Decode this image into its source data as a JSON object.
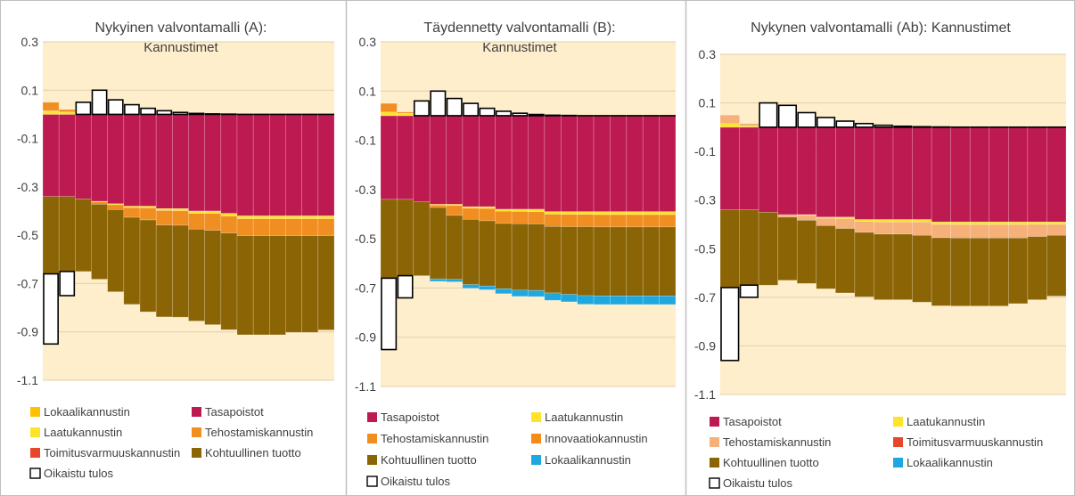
{
  "colors": {
    "tasapoistot": "#be1a52",
    "kohtuullinen": "#8b6405",
    "tehostamis": "#f18e22",
    "tehostamis_light": "#f6b07a",
    "laatu": "#fde32a",
    "lokaali_a": "#ffc000",
    "lokaali_b": "#1ea8df",
    "toimitus": "#e6472a",
    "innovaatio": "#f58a16",
    "oikaistu": "#ffffff",
    "plot_bg": "#feeecc",
    "grid": "#e1cfa9",
    "panel_border": "#bfbfbf"
  },
  "chart_data": [
    {
      "type": "bar",
      "stacked": true,
      "title": "Nykyinen valvontamalli (A): Kannustimet",
      "title_lines": [
        "Nykyinen valvontamalli (A):",
        "Kannustimet"
      ],
      "ylim": [
        -1.1,
        0.3
      ],
      "yticks": [
        "0.3",
        "0.1",
        "-0.1",
        "-0.3",
        "-0.5",
        "-0.7",
        "-0.9",
        "-1.1"
      ],
      "grid": true,
      "legend_position": "bottom",
      "legend": [
        {
          "key": "lokaali",
          "label": "Lokaalikannustin",
          "color": "#ffc000"
        },
        {
          "key": "tasapoistot",
          "label": "Tasapoistot",
          "color": "#be1a52"
        },
        {
          "key": "laatu",
          "label": "Laatukannustin",
          "color": "#fde32a"
        },
        {
          "key": "tehostamis",
          "label": "Tehostamiskannustin",
          "color": "#f18e22"
        },
        {
          "key": "toimitus",
          "label": "Toimitusvarmuuskannustin",
          "color": "#e6472a"
        },
        {
          "key": "kohtuullinen",
          "label": "Kohtuullinen tuotto",
          "color": "#8b6405"
        },
        {
          "key": "oikaistu",
          "label": "Oikaistu tulos",
          "color": "#ffffff"
        }
      ],
      "series": [
        {
          "key": "tasapoistot",
          "values": [
            -0.34,
            -0.34,
            -0.35,
            -0.36,
            -0.37,
            -0.38,
            -0.38,
            -0.39,
            -0.39,
            -0.4,
            -0.4,
            -0.41,
            -0.42,
            -0.42,
            -0.42,
            -0.42,
            -0.42,
            -0.42
          ]
        },
        {
          "key": "laatu",
          "values": [
            0.015,
            0.01,
            0,
            -0.002,
            -0.004,
            -0.006,
            -0.007,
            -0.008,
            -0.009,
            -0.01,
            -0.01,
            -0.011,
            -0.012,
            -0.012,
            -0.012,
            -0.012,
            -0.012,
            -0.012
          ]
        },
        {
          "key": "tehostamis",
          "values": [
            0.035,
            0.01,
            0,
            -0.01,
            -0.02,
            -0.04,
            -0.05,
            -0.06,
            -0.06,
            -0.065,
            -0.07,
            -0.07,
            -0.07,
            -0.07,
            -0.07,
            -0.07,
            -0.07,
            -0.07
          ]
        },
        {
          "key": "kohtuullinen",
          "values": [
            -0.32,
            -0.31,
            -0.3,
            -0.31,
            -0.34,
            -0.36,
            -0.38,
            -0.38,
            -0.38,
            -0.38,
            -0.39,
            -0.4,
            -0.41,
            -0.41,
            -0.41,
            -0.4,
            -0.4,
            -0.39
          ]
        }
      ],
      "oikaistu_tulos": [
        -0.29,
        -0.1,
        0.05,
        0.1,
        0.06,
        0.04,
        0.025,
        0.015,
        0.008,
        0.004,
        0.002,
        0.001,
        0,
        0,
        0,
        0,
        0,
        0
      ]
    },
    {
      "type": "bar",
      "stacked": true,
      "title": "Täydennetty valvontamalli (B): Kannustimet",
      "title_lines": [
        "Täydennetty valvontamalli (B):",
        "Kannustimet"
      ],
      "ylim": [
        -1.1,
        0.3
      ],
      "yticks": [
        "0.3",
        "0.1",
        "-0.1",
        "-0.3",
        "-0.5",
        "-0.7",
        "-0.9",
        "-1.1"
      ],
      "grid": true,
      "legend_position": "bottom",
      "legend": [
        {
          "key": "tasapoistot",
          "label": "Tasapoistot",
          "color": "#be1a52"
        },
        {
          "key": "laatu",
          "label": "Laatukannustin",
          "color": "#fde32a"
        },
        {
          "key": "tehostamis",
          "label": "Tehostamiskannustin",
          "color": "#f18e22"
        },
        {
          "key": "innovaatio",
          "label": "Innovaatiokannustin",
          "color": "#f58a16"
        },
        {
          "key": "kohtuullinen",
          "label": "Kohtuullinen tuotto",
          "color": "#8b6405"
        },
        {
          "key": "lokaali",
          "label": "Lokaalikannustin",
          "color": "#1ea8df"
        },
        {
          "key": "oikaistu",
          "label": "Oikaistu tulos",
          "color": "#ffffff"
        }
      ],
      "series": [
        {
          "key": "tasapoistot",
          "values": [
            -0.34,
            -0.34,
            -0.35,
            -0.36,
            -0.36,
            -0.37,
            -0.37,
            -0.38,
            -0.38,
            -0.38,
            -0.39,
            -0.39,
            -0.39,
            -0.39,
            -0.39,
            -0.39,
            -0.39,
            -0.39
          ]
        },
        {
          "key": "laatu",
          "values": [
            0.015,
            0.01,
            0,
            -0.003,
            -0.005,
            -0.006,
            -0.007,
            -0.008,
            -0.009,
            -0.01,
            -0.01,
            -0.011,
            -0.011,
            -0.012,
            -0.012,
            -0.012,
            -0.012,
            -0.012
          ]
        },
        {
          "key": "tehostamis",
          "values": [
            0.035,
            0.005,
            0,
            -0.01,
            -0.04,
            -0.045,
            -0.05,
            -0.05,
            -0.05,
            -0.05,
            -0.05,
            -0.05,
            -0.05,
            -0.05,
            -0.05,
            -0.05,
            -0.05,
            -0.05
          ]
        },
        {
          "key": "kohtuullinen",
          "values": [
            -0.32,
            -0.31,
            -0.3,
            -0.29,
            -0.26,
            -0.265,
            -0.265,
            -0.265,
            -0.27,
            -0.27,
            -0.27,
            -0.275,
            -0.28,
            -0.28,
            -0.28,
            -0.28,
            -0.28,
            -0.28
          ]
        },
        {
          "key": "lokaali",
          "values": [
            0,
            0,
            0,
            -0.01,
            -0.01,
            -0.015,
            -0.015,
            -0.02,
            -0.025,
            -0.025,
            -0.03,
            -0.03,
            -0.035,
            -0.035,
            -0.035,
            -0.035,
            -0.035,
            -0.035
          ]
        }
      ],
      "oikaistu_tulos": [
        -0.29,
        -0.09,
        0.06,
        0.1,
        0.07,
        0.05,
        0.03,
        0.018,
        0.01,
        0.005,
        0.002,
        0.001,
        0,
        0,
        0,
        0,
        0,
        0
      ]
    },
    {
      "type": "bar",
      "stacked": true,
      "title": "Nykynen valvontamalli (Ab): Kannustimet",
      "title_lines": [
        "Nykynen valvontamalli (Ab): Kannustimet"
      ],
      "ylim": [
        -1.1,
        0.3
      ],
      "yticks": [
        "0.3",
        "0.1",
        "-0.1",
        "-0.3",
        "-0.5",
        "-0.7",
        "-0.9",
        "-1.1"
      ],
      "grid": true,
      "legend_position": "bottom",
      "legend": [
        {
          "key": "tasapoistot",
          "label": "Tasapoistot",
          "color": "#be1a52"
        },
        {
          "key": "laatu",
          "label": "Laatukannustin",
          "color": "#fde32a"
        },
        {
          "key": "tehostamis",
          "label": "Tehostamiskannustin",
          "color": "#f6b07a"
        },
        {
          "key": "toimitus",
          "label": "Toimitusvarmuuskannustin",
          "color": "#e6472a"
        },
        {
          "key": "kohtuullinen",
          "label": "Kohtuullinen tuotto",
          "color": "#8b6405"
        },
        {
          "key": "lokaali",
          "label": "Lokaalikannustin",
          "color": "#1ea8df"
        },
        {
          "key": "oikaistu",
          "label": "Oikaistu tulos",
          "color": "#ffffff"
        }
      ],
      "series": [
        {
          "key": "tasapoistot",
          "values": [
            -0.34,
            -0.34,
            -0.35,
            -0.36,
            -0.36,
            -0.37,
            -0.37,
            -0.38,
            -0.38,
            -0.38,
            -0.38,
            -0.39,
            -0.39,
            -0.39,
            -0.39,
            -0.39,
            -0.39,
            -0.39
          ]
        },
        {
          "key": "laatu",
          "values": [
            0.015,
            0.005,
            0,
            0,
            -0.003,
            -0.005,
            -0.007,
            -0.008,
            -0.01,
            -0.01,
            -0.01,
            -0.01,
            -0.011,
            -0.011,
            -0.011,
            -0.011,
            -0.01,
            -0.01
          ]
        },
        {
          "key": "tehostamis",
          "values": [
            0.035,
            0.01,
            0,
            -0.01,
            -0.02,
            -0.03,
            -0.04,
            -0.045,
            -0.05,
            -0.05,
            -0.055,
            -0.055,
            -0.055,
            -0.055,
            -0.055,
            -0.055,
            -0.05,
            -0.045
          ]
        },
        {
          "key": "kohtuullinen",
          "values": [
            -0.32,
            -0.31,
            -0.3,
            -0.26,
            -0.26,
            -0.26,
            -0.265,
            -0.265,
            -0.27,
            -0.27,
            -0.275,
            -0.28,
            -0.28,
            -0.28,
            -0.28,
            -0.27,
            -0.26,
            -0.25
          ]
        }
      ],
      "oikaistu_tulos": [
        -0.3,
        -0.05,
        0.1,
        0.09,
        0.06,
        0.04,
        0.025,
        0.015,
        0.008,
        0.004,
        0.002,
        0.001,
        0,
        0,
        0,
        0,
        0,
        0
      ]
    }
  ]
}
